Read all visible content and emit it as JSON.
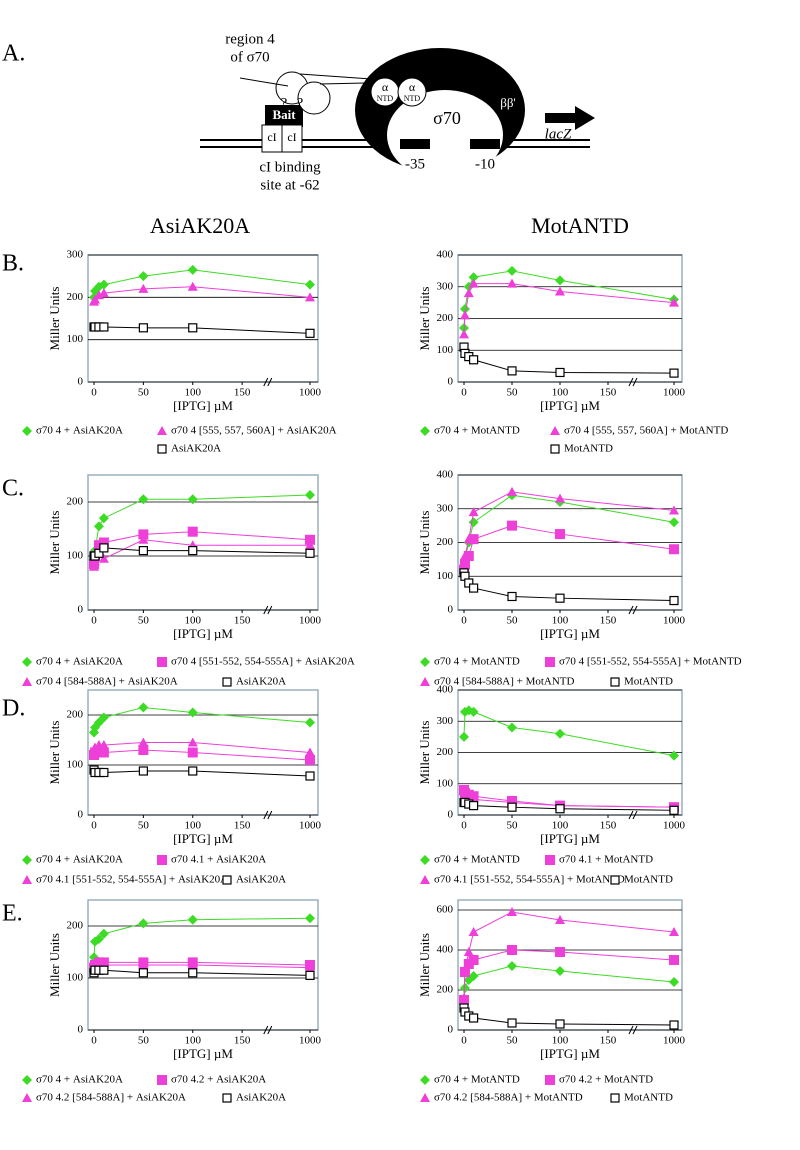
{
  "panel_labels": [
    "A.",
    "B.",
    "C.",
    "D.",
    "E."
  ],
  "column_headers": [
    "AsiAK20A",
    "MotANTD"
  ],
  "diagram": {
    "region_label": "region 4",
    "region_sub": "of σ70",
    "question": "?",
    "bait": "Bait",
    "ci_left": "cI",
    "ci_right": "cI",
    "ci_site_1": "cI binding",
    "ci_site_2": "site at -62",
    "alpha_1": "α",
    "alpha_ntd_1": "NTD",
    "alpha_2": "α",
    "alpha_ntd_2": "NTD",
    "sigma": "σ70",
    "beta": "ββ'",
    "lacz": "lacZ",
    "minus35": "-35",
    "minus10": "-10"
  },
  "chart_data": [
    {
      "type": "line",
      "x": [
        0,
        1,
        5,
        10,
        50,
        100,
        1000
      ],
      "xlim": [
        0,
        1000
      ],
      "x_break": 175,
      "xticks": [
        0,
        50,
        100,
        150,
        1000
      ],
      "ylim": [
        0,
        300
      ],
      "yticks": [
        0,
        100,
        200,
        300
      ],
      "grid": true,
      "xlabel": "[IPTG] µM",
      "ylabel": "Miller Units",
      "series": [
        {
          "name": "σ70 4 + AsiAK20A",
          "color": "#3ddc24",
          "marker": "diamond",
          "values": [
            200,
            215,
            225,
            230,
            250,
            265,
            230
          ]
        },
        {
          "name": "σ70 4 [555, 557, 560A] + AsiAK20A",
          "color": "#ee3fd9",
          "marker": "triangle",
          "values": [
            190,
            195,
            205,
            210,
            220,
            225,
            200
          ]
        },
        {
          "name": "AsiAK20A",
          "color": "#000000",
          "marker": "open-square",
          "values": [
            130,
            130,
            130,
            130,
            128,
            128,
            115
          ]
        }
      ]
    },
    {
      "type": "line",
      "x": [
        0,
        1,
        5,
        10,
        50,
        100,
        1000
      ],
      "xlim": [
        0,
        1000
      ],
      "x_break": 175,
      "xticks": [
        0,
        50,
        100,
        150,
        1000
      ],
      "ylim": [
        0,
        400
      ],
      "yticks": [
        0,
        100,
        200,
        300,
        400
      ],
      "grid": true,
      "xlabel": "[IPTG] µM",
      "ylabel": "Miller Units",
      "series": [
        {
          "name": "σ70 4 + MotANTD",
          "color": "#3ddc24",
          "marker": "diamond",
          "values": [
            170,
            230,
            300,
            330,
            350,
            320,
            260
          ]
        },
        {
          "name": "σ70 4 [555, 557, 560A] + MotANTD",
          "color": "#ee3fd9",
          "marker": "triangle",
          "values": [
            150,
            210,
            280,
            310,
            310,
            285,
            250
          ]
        },
        {
          "name": "MotANTD",
          "color": "#000000",
          "marker": "open-square",
          "values": [
            110,
            90,
            80,
            70,
            35,
            30,
            28
          ]
        }
      ]
    },
    {
      "type": "line",
      "x": [
        0,
        1,
        5,
        10,
        50,
        100,
        1000
      ],
      "xlim": [
        0,
        1000
      ],
      "x_break": 175,
      "xticks": [
        0,
        50,
        100,
        150,
        1000
      ],
      "ylim": [
        0,
        250
      ],
      "yticks": [
        0,
        100,
        200
      ],
      "grid": true,
      "xlabel": "[IPTG] µM",
      "ylabel": "Miller Units",
      "series": [
        {
          "name": "σ70 4 + AsiAK20A",
          "color": "#3ddc24",
          "marker": "diamond",
          "values": [
            90,
            110,
            155,
            170,
            205,
            205,
            213
          ]
        },
        {
          "name": "σ70 4 [551-552, 554-555A] + AsiAK20A",
          "color": "#ee3fd9",
          "marker": "square",
          "values": [
            85,
            100,
            120,
            125,
            140,
            145,
            130
          ]
        },
        {
          "name": "σ70 4 [584-588A] + AsiAK20A",
          "color": "#ee3fd9",
          "marker": "triangle",
          "values": [
            80,
            90,
            110,
            95,
            130,
            120,
            120
          ]
        },
        {
          "name": "AsiAK20A",
          "color": "#000000",
          "marker": "open-square",
          "values": [
            100,
            100,
            105,
            115,
            110,
            110,
            105
          ]
        }
      ]
    },
    {
      "type": "line",
      "x": [
        0,
        1,
        5,
        10,
        50,
        100,
        1000
      ],
      "xlim": [
        0,
        1000
      ],
      "x_break": 175,
      "xticks": [
        0,
        50,
        100,
        150,
        1000
      ],
      "ylim": [
        0,
        400
      ],
      "yticks": [
        0,
        100,
        200,
        300,
        400
      ],
      "grid": true,
      "xlabel": "[IPTG] µM",
      "ylabel": "Miller Units",
      "series": [
        {
          "name": "σ70 4 + MotANTD",
          "color": "#3ddc24",
          "marker": "diamond",
          "values": [
            110,
            150,
            200,
            260,
            340,
            320,
            260
          ]
        },
        {
          "name": "σ70 4 [551-552, 554-555A] + MotANTD",
          "color": "#ee3fd9",
          "marker": "square",
          "values": [
            120,
            135,
            160,
            210,
            250,
            225,
            180
          ]
        },
        {
          "name": "σ70 4 [584-588A] + MotANTD",
          "color": "#ee3fd9",
          "marker": "triangle",
          "values": [
            110,
            160,
            210,
            290,
            350,
            330,
            295
          ]
        },
        {
          "name": "MotANTD",
          "color": "#000000",
          "marker": "open-square",
          "values": [
            110,
            100,
            80,
            65,
            40,
            35,
            28
          ]
        }
      ]
    },
    {
      "type": "line",
      "x": [
        0,
        1,
        5,
        10,
        50,
        100,
        1000
      ],
      "xlim": [
        0,
        1000
      ],
      "x_break": 175,
      "xticks": [
        0,
        50,
        100,
        150,
        1000
      ],
      "ylim": [
        0,
        250
      ],
      "yticks": [
        0,
        100,
        200
      ],
      "grid": true,
      "xlabel": "[IPTG] µM",
      "ylabel": "Miller Units",
      "series": [
        {
          "name": "σ70 4 + AsiAK20A",
          "color": "#3ddc24",
          "marker": "diamond",
          "values": [
            165,
            175,
            185,
            195,
            215,
            205,
            185
          ]
        },
        {
          "name": "σ70 4.1 + AsiAK20A",
          "color": "#ee3fd9",
          "marker": "square",
          "values": [
            120,
            125,
            125,
            125,
            130,
            125,
            110
          ]
        },
        {
          "name": "σ70 4.1 [551-552, 554-555A] + AsiAK20A",
          "color": "#ee3fd9",
          "marker": "triangle",
          "values": [
            130,
            135,
            140,
            140,
            145,
            145,
            125
          ]
        },
        {
          "name": "AsiAK20A",
          "color": "#000000",
          "marker": "open-square",
          "values": [
            90,
            85,
            85,
            85,
            88,
            88,
            78
          ]
        }
      ]
    },
    {
      "type": "line",
      "x": [
        0,
        1,
        5,
        10,
        50,
        100,
        1000
      ],
      "xlim": [
        0,
        1000
      ],
      "x_break": 175,
      "xticks": [
        0,
        50,
        100,
        150,
        1000
      ],
      "ylim": [
        0,
        400
      ],
      "yticks": [
        0,
        100,
        200,
        300,
        400
      ],
      "grid": true,
      "xlabel": "[IPTG] µM",
      "ylabel": "Miller Units",
      "series": [
        {
          "name": "σ70 4 + MotANTD",
          "color": "#3ddc24",
          "marker": "diamond",
          "values": [
            250,
            330,
            335,
            330,
            280,
            260,
            190
          ]
        },
        {
          "name": "σ70 4.1 + MotANTD",
          "color": "#ee3fd9",
          "marker": "square",
          "values": [
            80,
            70,
            65,
            60,
            45,
            30,
            25
          ]
        },
        {
          "name": "σ70 4.1 [551-552, 554-555A] + MotANTD",
          "color": "#ee3fd9",
          "marker": "triangle",
          "values": [
            75,
            65,
            55,
            50,
            40,
            30,
            25
          ]
        },
        {
          "name": "MotANTD",
          "color": "#000000",
          "marker": "open-square",
          "values": [
            40,
            40,
            35,
            30,
            25,
            20,
            15
          ]
        }
      ]
    },
    {
      "type": "line",
      "x": [
        0,
        1,
        5,
        10,
        50,
        100,
        1000
      ],
      "xlim": [
        0,
        1000
      ],
      "x_break": 175,
      "xticks": [
        0,
        50,
        100,
        150,
        1000
      ],
      "ylim": [
        0,
        250
      ],
      "yticks": [
        0,
        100,
        200
      ],
      "grid": true,
      "xlabel": "[IPTG] µM",
      "ylabel": "Miller Units",
      "series": [
        {
          "name": "σ70 4 + AsiAK20A",
          "color": "#3ddc24",
          "marker": "diamond",
          "values": [
            140,
            170,
            175,
            185,
            205,
            212,
            215
          ]
        },
        {
          "name": "σ70 4.2 + AsiAK20A",
          "color": "#ee3fd9",
          "marker": "square",
          "values": [
            120,
            125,
            130,
            130,
            130,
            130,
            125
          ]
        },
        {
          "name": "σ70 4.2 [584-588A] + AsiAK20A",
          "color": "#ee3fd9",
          "marker": "triangle",
          "values": [
            115,
            120,
            125,
            125,
            125,
            125,
            120
          ]
        },
        {
          "name": "AsiAK20A",
          "color": "#000000",
          "marker": "open-square",
          "values": [
            110,
            115,
            115,
            115,
            110,
            110,
            105
          ]
        }
      ]
    },
    {
      "type": "line",
      "x": [
        0,
        1,
        5,
        10,
        50,
        100,
        1000
      ],
      "xlim": [
        0,
        1000
      ],
      "x_break": 175,
      "xticks": [
        0,
        50,
        100,
        150,
        1000
      ],
      "ylim": [
        0,
        650
      ],
      "yticks": [
        0,
        200,
        400,
        600
      ],
      "grid": true,
      "xlabel": "[IPTG] µM",
      "ylabel": "Miller Units",
      "series": [
        {
          "name": "σ70 4 + MotANTD",
          "color": "#3ddc24",
          "marker": "diamond",
          "values": [
            140,
            210,
            250,
            270,
            320,
            295,
            240
          ]
        },
        {
          "name": "σ70 4.2 + MotANTD",
          "color": "#ee3fd9",
          "marker": "square",
          "values": [
            150,
            290,
            330,
            350,
            400,
            390,
            350
          ]
        },
        {
          "name": "σ70 4.2 [584-588A] + MotANTD",
          "color": "#ee3fd9",
          "marker": "triangle",
          "values": [
            160,
            300,
            390,
            490,
            590,
            550,
            490
          ]
        },
        {
          "name": "MotANTD",
          "color": "#000000",
          "marker": "open-square",
          "values": [
            110,
            90,
            70,
            60,
            35,
            30,
            25
          ]
        }
      ]
    }
  ]
}
